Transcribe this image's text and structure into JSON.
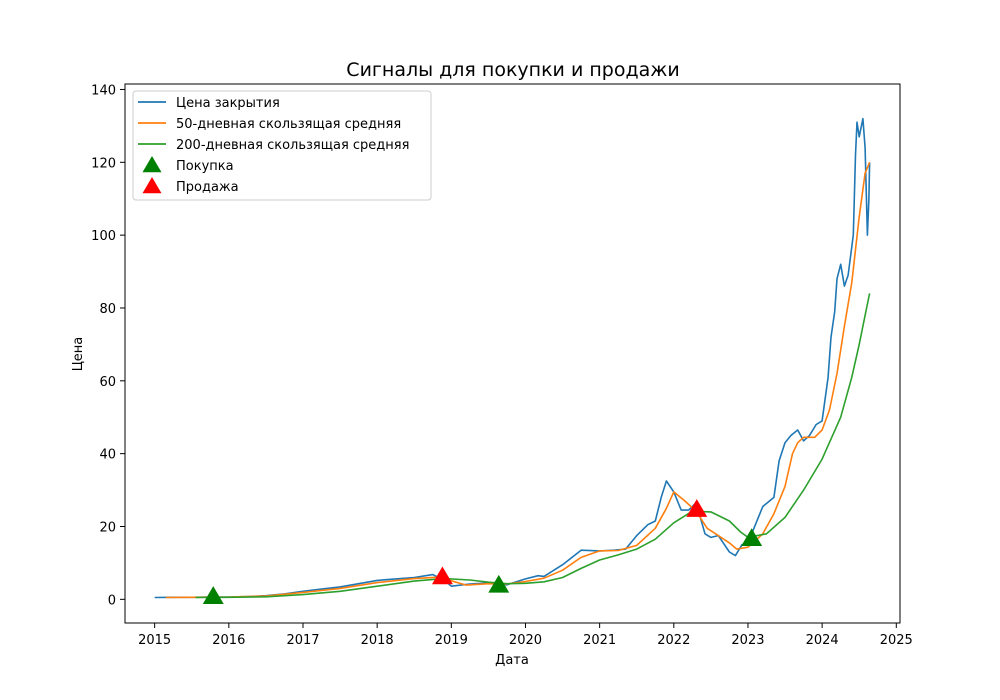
{
  "chart_data": {
    "type": "line",
    "title": "Сигналы для покупки и продажи",
    "xlabel": "Дата",
    "ylabel": "Цена",
    "xlim": [
      2014.6,
      2025.05
    ],
    "ylim": [
      -6.5,
      141.5
    ],
    "xticks": [
      2015,
      2016,
      2017,
      2018,
      2019,
      2020,
      2021,
      2022,
      2023,
      2024,
      2025
    ],
    "yticks": [
      0,
      20,
      40,
      60,
      80,
      100,
      120,
      140
    ],
    "grid": false,
    "legend_position": "top-left",
    "series": [
      {
        "name": "Цена закрытия",
        "color": "#1f77b4",
        "points": [
          [
            2015.0,
            0.5
          ],
          [
            2015.25,
            0.55
          ],
          [
            2015.5,
            0.55
          ],
          [
            2015.75,
            0.6
          ],
          [
            2016.0,
            0.65
          ],
          [
            2016.25,
            0.75
          ],
          [
            2016.5,
            1.0
          ],
          [
            2016.75,
            1.5
          ],
          [
            2017.0,
            2.2
          ],
          [
            2017.25,
            2.8
          ],
          [
            2017.5,
            3.4
          ],
          [
            2017.75,
            4.3
          ],
          [
            2018.0,
            5.2
          ],
          [
            2018.25,
            5.6
          ],
          [
            2018.5,
            6.0
          ],
          [
            2018.75,
            6.8
          ],
          [
            2018.92,
            5.0
          ],
          [
            2019.0,
            3.6
          ],
          [
            2019.25,
            4.2
          ],
          [
            2019.5,
            4.5
          ],
          [
            2019.75,
            4.0
          ],
          [
            2020.0,
            5.6
          ],
          [
            2020.17,
            6.5
          ],
          [
            2020.25,
            6.3
          ],
          [
            2020.5,
            9.5
          ],
          [
            2020.75,
            13.5
          ],
          [
            2021.0,
            13.3
          ],
          [
            2021.2,
            13.5
          ],
          [
            2021.35,
            13.8
          ],
          [
            2021.5,
            17.5
          ],
          [
            2021.65,
            20.5
          ],
          [
            2021.75,
            21.5
          ],
          [
            2021.83,
            28.0
          ],
          [
            2021.9,
            32.5
          ],
          [
            2022.0,
            29.5
          ],
          [
            2022.1,
            24.5
          ],
          [
            2022.2,
            24.5
          ],
          [
            2022.3,
            26.5
          ],
          [
            2022.42,
            18.0
          ],
          [
            2022.5,
            17.0
          ],
          [
            2022.6,
            17.5
          ],
          [
            2022.75,
            13.0
          ],
          [
            2022.83,
            12.0
          ],
          [
            2022.92,
            15.0
          ],
          [
            2023.0,
            15.5
          ],
          [
            2023.1,
            20.5
          ],
          [
            2023.2,
            25.5
          ],
          [
            2023.35,
            28.0
          ],
          [
            2023.42,
            38.0
          ],
          [
            2023.5,
            43.0
          ],
          [
            2023.58,
            45.0
          ],
          [
            2023.67,
            46.5
          ],
          [
            2023.75,
            43.5
          ],
          [
            2023.83,
            45.0
          ],
          [
            2023.92,
            48.0
          ],
          [
            2024.0,
            49.0
          ],
          [
            2024.08,
            61.0
          ],
          [
            2024.12,
            72.0
          ],
          [
            2024.17,
            79.0
          ],
          [
            2024.2,
            88.0
          ],
          [
            2024.25,
            92.0
          ],
          [
            2024.3,
            86.0
          ],
          [
            2024.35,
            89.0
          ],
          [
            2024.42,
            100.0
          ],
          [
            2024.45,
            122.0
          ],
          [
            2024.47,
            131.0
          ],
          [
            2024.5,
            127.0
          ],
          [
            2024.55,
            132.0
          ],
          [
            2024.58,
            124.0
          ],
          [
            2024.61,
            100.0
          ],
          [
            2024.63,
            110.0
          ],
          [
            2024.64,
            120.0
          ]
        ]
      },
      {
        "name": "50-дневная скользящая средняя",
        "color": "#ff7f0e",
        "points": [
          [
            2015.15,
            0.5
          ],
          [
            2015.5,
            0.55
          ],
          [
            2016.0,
            0.6
          ],
          [
            2016.5,
            0.9
          ],
          [
            2017.0,
            1.9
          ],
          [
            2017.5,
            3.0
          ],
          [
            2018.0,
            4.6
          ],
          [
            2018.5,
            5.7
          ],
          [
            2018.85,
            6.1
          ],
          [
            2019.0,
            5.1
          ],
          [
            2019.2,
            3.9
          ],
          [
            2019.5,
            4.3
          ],
          [
            2019.75,
            4.2
          ],
          [
            2020.0,
            4.9
          ],
          [
            2020.25,
            5.8
          ],
          [
            2020.5,
            8.0
          ],
          [
            2020.75,
            11.5
          ],
          [
            2021.0,
            13.3
          ],
          [
            2021.25,
            13.4
          ],
          [
            2021.5,
            14.8
          ],
          [
            2021.75,
            19.5
          ],
          [
            2021.9,
            25.0
          ],
          [
            2022.0,
            29.5
          ],
          [
            2022.15,
            27.0
          ],
          [
            2022.3,
            24.2
          ],
          [
            2022.45,
            19.5
          ],
          [
            2022.6,
            17.5
          ],
          [
            2022.75,
            15.5
          ],
          [
            2022.85,
            13.8
          ],
          [
            2023.0,
            14.3
          ],
          [
            2023.2,
            18.0
          ],
          [
            2023.35,
            23.5
          ],
          [
            2023.5,
            31.0
          ],
          [
            2023.6,
            40.0
          ],
          [
            2023.67,
            43.0
          ],
          [
            2023.75,
            44.5
          ],
          [
            2023.9,
            44.5
          ],
          [
            2024.0,
            46.5
          ],
          [
            2024.1,
            52.0
          ],
          [
            2024.2,
            62.0
          ],
          [
            2024.3,
            75.0
          ],
          [
            2024.4,
            87.0
          ],
          [
            2024.5,
            105.0
          ],
          [
            2024.58,
            117.0
          ],
          [
            2024.64,
            120.0
          ]
        ]
      },
      {
        "name": "200-дневная скользящая средняя",
        "color": "#2ca02c",
        "points": [
          [
            2015.55,
            0.5
          ],
          [
            2016.0,
            0.55
          ],
          [
            2016.5,
            0.7
          ],
          [
            2017.0,
            1.3
          ],
          [
            2017.5,
            2.2
          ],
          [
            2018.0,
            3.6
          ],
          [
            2018.5,
            5.0
          ],
          [
            2018.9,
            5.7
          ],
          [
            2019.25,
            5.3
          ],
          [
            2019.5,
            4.7
          ],
          [
            2019.75,
            4.3
          ],
          [
            2020.0,
            4.4
          ],
          [
            2020.25,
            4.8
          ],
          [
            2020.5,
            6.0
          ],
          [
            2020.75,
            8.5
          ],
          [
            2021.0,
            10.8
          ],
          [
            2021.25,
            12.2
          ],
          [
            2021.5,
            13.8
          ],
          [
            2021.75,
            16.5
          ],
          [
            2022.0,
            21.0
          ],
          [
            2022.25,
            24.2
          ],
          [
            2022.5,
            24.0
          ],
          [
            2022.75,
            21.5
          ],
          [
            2022.9,
            18.5
          ],
          [
            2023.0,
            17.0
          ],
          [
            2023.25,
            18.0
          ],
          [
            2023.5,
            22.5
          ],
          [
            2023.75,
            30.0
          ],
          [
            2024.0,
            38.5
          ],
          [
            2024.25,
            50.0
          ],
          [
            2024.4,
            61.0
          ],
          [
            2024.5,
            70.0
          ],
          [
            2024.6,
            80.0
          ],
          [
            2024.64,
            84.0
          ]
        ]
      }
    ],
    "markers": [
      {
        "name": "Покупка",
        "color": "#008000",
        "points": [
          [
            2015.79,
            0.6
          ],
          [
            2019.64,
            3.7
          ],
          [
            2023.05,
            16.5
          ]
        ]
      },
      {
        "name": "Продажа",
        "color": "#ff0000",
        "points": [
          [
            2018.88,
            6.0
          ],
          [
            2022.31,
            24.5
          ]
        ]
      }
    ]
  }
}
